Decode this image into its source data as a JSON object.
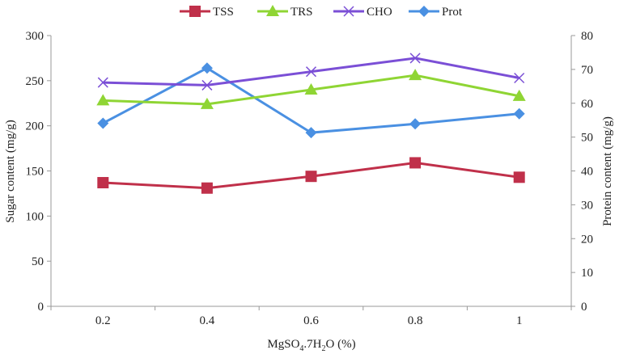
{
  "chart_data": {
    "type": "line",
    "title": "",
    "xlabel": "MgSO4.7H2O  (%)",
    "xlabel_parts": {
      "pre": "MgSO",
      "sub": "4",
      "post": ".7H",
      "sub2": "2",
      "post2": "O  (%)"
    },
    "ylabel": "Sugar content (mg/g)",
    "y2label": "Protein content (mg/g)",
    "categories": [
      "0.2",
      "0.4",
      "0.6",
      "0.8",
      "1"
    ],
    "ylim": [
      0,
      300
    ],
    "y2lim": [
      0,
      80
    ],
    "yticks": [
      0,
      50,
      100,
      150,
      200,
      250,
      300
    ],
    "y2ticks": [
      0,
      10,
      20,
      30,
      40,
      50,
      60,
      70,
      80
    ],
    "grid": false,
    "legend_position": "top",
    "series": [
      {
        "name": "TSS",
        "axis": "left",
        "marker": "square",
        "color": "#C0304A",
        "values": [
          137,
          131,
          144,
          159,
          143
        ]
      },
      {
        "name": "TRS",
        "axis": "left",
        "marker": "triangle",
        "color": "#8FD534",
        "values": [
          228,
          224,
          240,
          256,
          233
        ]
      },
      {
        "name": "CHO",
        "axis": "left",
        "marker": "x",
        "color": "#7B4FD6",
        "values": [
          248,
          245,
          260,
          275,
          253
        ]
      },
      {
        "name": "Prot",
        "axis": "right",
        "marker": "diamond",
        "color": "#4A90E2",
        "values": [
          54.1,
          70.4,
          51.3,
          53.9,
          56.9
        ]
      }
    ]
  }
}
